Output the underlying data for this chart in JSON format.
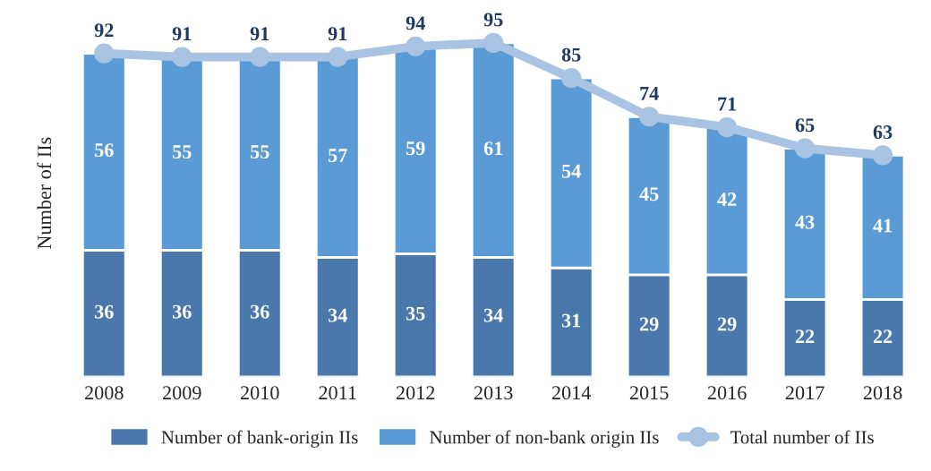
{
  "chart_data": {
    "type": "bar",
    "ylabel": "Number of IIs",
    "categories": [
      "2008",
      "2009",
      "2010",
      "2011",
      "2012",
      "2013",
      "2014",
      "2015",
      "2016",
      "2017",
      "2018"
    ],
    "stacked": true,
    "data_labels": true,
    "tick_labels": "x",
    "grid": false,
    "legend": "bottom",
    "series": [
      {
        "name": "Number of bank-origin IIs",
        "color": "#4a78ad",
        "values": [
          36,
          36,
          36,
          34,
          35,
          34,
          31,
          29,
          29,
          22,
          22
        ]
      },
      {
        "name": "Number of non-bank origin IIs",
        "color": "#5b9bd5",
        "values": [
          56,
          55,
          55,
          57,
          59,
          61,
          54,
          45,
          42,
          43,
          41
        ]
      },
      {
        "name": "Total number of IIs",
        "type": "line",
        "color": "#a9c4e2",
        "marker": "circle",
        "line_style": "solid",
        "values": [
          92,
          91,
          91,
          91,
          94,
          95,
          85,
          74,
          71,
          65,
          63
        ]
      }
    ]
  }
}
